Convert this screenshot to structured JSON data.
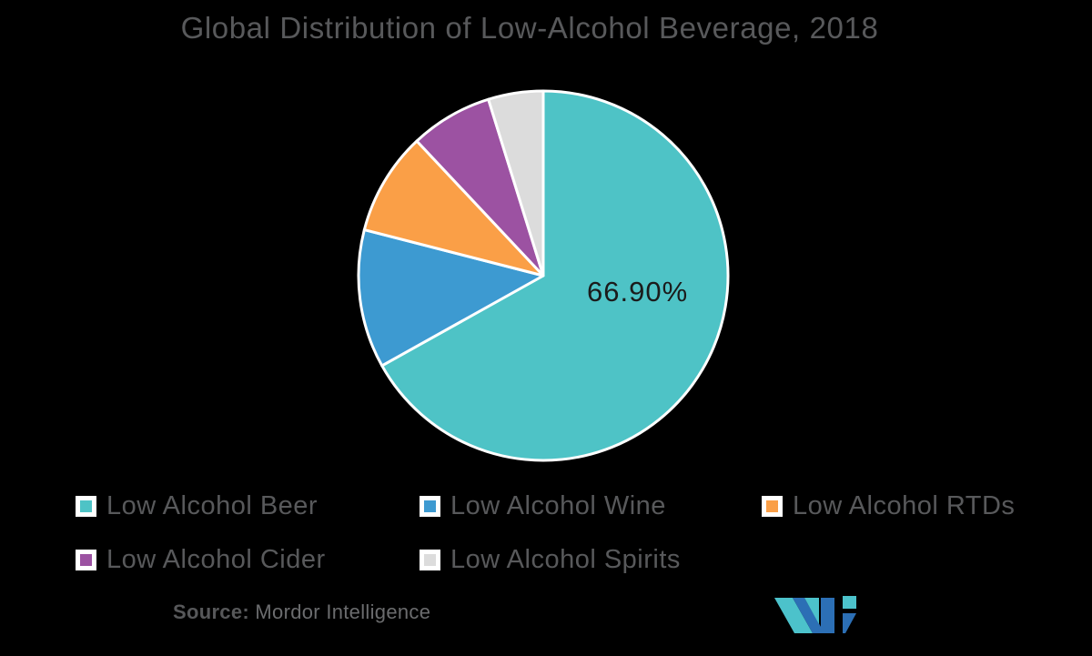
{
  "title": "Global Distribution of Low-Alcohol Beverage, 2018",
  "chart_data": {
    "type": "pie",
    "title": "Global Distribution of Low-Alcohol Beverage, 2018",
    "labels": [
      "Low Alcohol Beer",
      "Low Alcohol Wine",
      "Low Alcohol RTDs",
      "Low Alcohol Cider",
      "Low Alcohol Spirits"
    ],
    "values": [
      66.9,
      12.1,
      9.0,
      7.2,
      4.8
    ],
    "colors": [
      "#4EC3C6",
      "#3D9AD1",
      "#FA9F47",
      "#9C52A2",
      "#DCDCDC"
    ],
    "data_labels": [
      "66.90%",
      "",
      "",
      "",
      ""
    ],
    "start_angle_deg": 0,
    "direction": "clockwise",
    "center": [
      597,
      303
    ],
    "radius": 203,
    "slice_border_color": "#FFFFFF",
    "legend_position": "bottom-left",
    "grid": false
  },
  "legend": {
    "items": [
      {
        "label": "Low Alcohol Beer",
        "color": "#4EC3C6"
      },
      {
        "label": "Low Alcohol Wine",
        "color": "#3D9AD1"
      },
      {
        "label": "Low Alcohol RTDs",
        "color": "#FA9F47"
      },
      {
        "label": "Low Alcohol Cider",
        "color": "#9C52A2"
      },
      {
        "label": "Low Alcohol Spirits",
        "color": "#DCDCDC"
      }
    ]
  },
  "source": {
    "prefix": "Source:",
    "text": " Mordor Intelligence"
  },
  "logo": {
    "name": "mordor-intelligence-logo",
    "teal": "#4CC2CB",
    "blue": "#2C6FB5"
  },
  "colors": {
    "background": "#000000",
    "title_text": "#58595B",
    "legend_text": "#58595B",
    "datalabel_text": "#1B1B1B"
  }
}
